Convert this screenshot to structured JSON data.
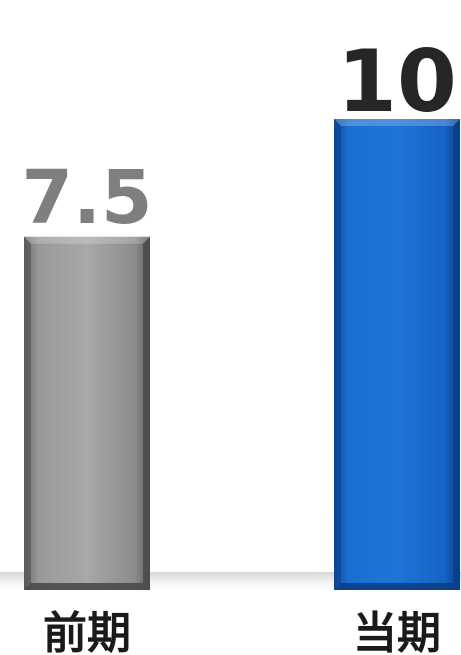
{
  "chart_data": {
    "type": "bar",
    "categories": [
      "前期",
      "当期"
    ],
    "values": [
      7.5,
      10
    ],
    "ylim": [
      0,
      10
    ],
    "grid": false,
    "legend": "none",
    "colors": {
      "bar_previous": "#8f8f8f",
      "bar_previous_edge": "#4a4a4a",
      "bar_current": "#1566c8",
      "bar_current_edge": "#0b3f85",
      "value_label_previous": "#7f7f7f",
      "value_label_current": "#262626",
      "category_label": "#1a1a1a"
    }
  }
}
